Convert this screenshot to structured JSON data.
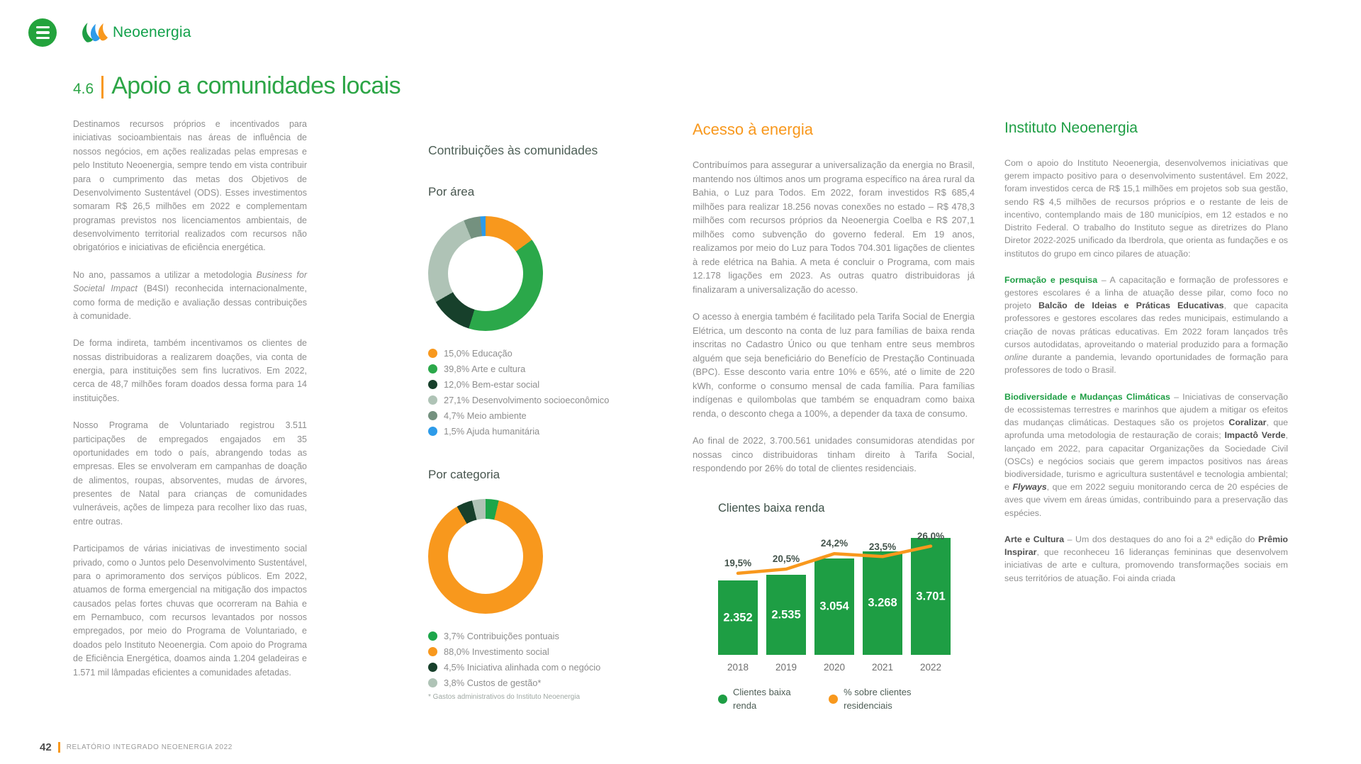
{
  "brand": {
    "name": "Neoenergia",
    "green": "#1E9E44",
    "orange": "#F8981D"
  },
  "page": {
    "section_number": "4.6",
    "title": "Apoio a comunidades locais",
    "footer": {
      "page_number": "42",
      "report_title": "RELATÓRIO INTEGRADO NEOENERGIA 2022"
    }
  },
  "col1": {
    "paragraphs": [
      "Destinamos recursos próprios e incentivados para iniciativas socioambientais nas áreas de influência de nossos negócios, em ações realizadas pelas empresas e pelo Instituto Neoenergia, sempre tendo em vista contribuir para o cumprimento das metas dos Objetivos de Desenvolvimento Sustentável (ODS). Esses investimentos somaram R$ 26,5 milhões em 2022 e complementam programas previstos nos licenciamentos ambientais, de desenvolvimento territorial realizados com recursos não obrigatórios e iniciativas de eficiência energética.",
      [
        {
          "t": "No ano, passamos a utilizar a metodologia "
        },
        {
          "t": "Business for Societal Impact",
          "i": true
        },
        {
          "t": " (B4SI) reconhecida internacionalmente, como forma de medição e avaliação dessas contribuições à comunidade."
        }
      ],
      "De forma indireta, também incentivamos os clientes de nossas distribuidoras a realizarem doações, via conta de energia, para instituições sem fins lucrativos. Em 2022, cerca de 48,7 milhões foram doados dessa forma para 14 instituições.",
      "Nosso Programa de Voluntariado registrou 3.511 participações de empregados engajados em 35 oportunidades em todo o país, abrangendo todas as empresas. Eles se envolveram em campanhas de doação de alimentos, roupas, absorventes, mudas de árvores, presentes de Natal para crianças de comunidades vulneráveis, ações de limpeza para recolher lixo das ruas, entre outras.",
      "Participamos de várias iniciativas de investimento social privado, como o Juntos pelo Desenvolvimento Sustentável, para o aprimoramento dos serviços públicos. Em 2022, atuamos de forma emergencial na mitigação dos impactos causados pelas fortes chuvas que ocorreram na Bahia e em Pernambuco, com recursos levantados por nossos empregados, por meio do Programa de Voluntariado, e doados pelo Instituto Neoenergia. Com apoio do Programa de Eficiência Energética, doamos ainda 1.204 geladeiras e 1.571 mil lâmpadas eficientes a comunidades afetadas."
    ]
  },
  "col2": {
    "heading": "Contribuições às comunidades"
  },
  "col3": {
    "heading": "Acesso à energia",
    "paragraphs": [
      "Contribuímos para assegurar a universalização da energia no Brasil, mantendo nos últimos anos um programa específico na área rural da Bahia, o Luz para Todos. Em 2022, foram investidos R$ 685,4 milhões para realizar 18.256 novas conexões no estado – R$ 478,3 milhões com recursos próprios da Neoenergia Coelba e R$ 207,1 milhões como subvenção do governo federal. Em 19 anos, realizamos por meio do Luz para Todos 704.301 ligações de clientes à rede elétrica na Bahia. A meta é concluir o Programa, com mais 12.178 ligações em 2023. As outras quatro distribuidoras já finalizaram a universalização do acesso.",
      "O acesso à energia também é facilitado pela Tarifa Social de Energia Elétrica, um desconto na conta de luz para famílias de baixa renda inscritas no Cadastro Único ou que tenham entre seus membros alguém que seja beneficiário do Benefício de Prestação Continuada (BPC). Esse desconto varia entre 10% e 65%, até o limite de 220 kWh, conforme o consumo mensal de cada família. Para famílias indígenas e quilombolas que também se enquadram como baixa renda, o desconto chega a 100%, a depender da taxa de consumo.",
      "Ao final de 2022, 3.700.561 unidades consumidoras atendidas por nossas cinco distribuidoras tinham direito à Tarifa Social, respondendo por 26% do total de clientes residenciais."
    ]
  },
  "col4": {
    "heading": "Instituto Neoenergia",
    "paragraphs": [
      "Com o apoio do Instituto Neoenergia, desenvolvemos iniciativas que gerem impacto positivo para o desenvolvimento sustentável. Em 2022, foram investidos cerca de R$ 15,1 milhões em projetos sob sua gestão, sendo R$ 4,5 milhões de recursos próprios e o restante de leis de incentivo, contemplando mais de 180 municípios, em 12 estados e no Distrito Federal. O trabalho do Instituto segue as diretrizes do Plano Diretor 2022-2025 unificado da Iberdrola, que orienta as fundações e os institutos do grupo em cinco pilares de atuação:",
      [
        {
          "t": "Formação e pesquisa",
          "b": true,
          "c": "green"
        },
        {
          "t": " – A capacitação e formação de professores e gestores escolares é a linha de atuação desse pilar, como foco no projeto "
        },
        {
          "t": "Balcão de Ideias e Práticas Educativas",
          "b": true,
          "c": "dark"
        },
        {
          "t": ", que capacita professores e gestores escolares das redes municipais, estimulando a criação de novas práticas educativas. Em 2022 foram lançados três cursos autodidatas, aproveitando o material produzido para a formação "
        },
        {
          "t": "online",
          "i": true
        },
        {
          "t": " durante a pandemia, levando oportunidades de formação para professores de todo o Brasil."
        }
      ],
      [
        {
          "t": "Biodiversidade e Mudanças Climáticas",
          "b": true,
          "c": "green"
        },
        {
          "t": " – Iniciativas de conservação de ecossistemas terrestres e marinhos que ajudem a mitigar os efeitos das mudanças climáticas. Destaques são os projetos "
        },
        {
          "t": "Coralizar",
          "b": true,
          "c": "dark"
        },
        {
          "t": ", que aprofunda uma metodologia de restauração de corais; "
        },
        {
          "t": "Impactô Verde",
          "b": true,
          "c": "dark"
        },
        {
          "t": ", lançado em 2022, para capacitar Organizações da Sociedade Civil (OSCs) e negócios sociais que gerem impactos positivos nas áreas biodiversidade, turismo e agricultura sustentável e tecnologia ambiental; e "
        },
        {
          "t": "Flyways",
          "b": true,
          "i": true,
          "c": "dark"
        },
        {
          "t": ", que em 2022 seguiu monitorando cerca de 20 espécies de aves que vivem em áreas úmidas, contribuindo para a preservação das espécies."
        }
      ],
      [
        {
          "t": "Arte e Cultura",
          "b": true,
          "c": "dark"
        },
        {
          "t": " – Um dos destaques do ano foi a 2ª edição do "
        },
        {
          "t": "Prêmio Inspirar",
          "b": true,
          "c": "dark"
        },
        {
          "t": ", que reconheceu 16 lideranças femininas que desenvolvem iniciativas de arte e cultura, promovendo transformações sociais em seus territórios de atuação. Foi ainda criada"
        }
      ]
    ]
  },
  "chart_data": [
    {
      "type": "pie",
      "subtype": "donut",
      "title": "Por área",
      "segments": [
        {
          "value": 15.0,
          "pct_label": "15,0%",
          "label": "Educação",
          "color": "#F8981D"
        },
        {
          "value": 39.8,
          "pct_label": "39,8%",
          "label": "Arte e cultura",
          "color": "#2BA84A"
        },
        {
          "value": 12.0,
          "pct_label": "12,0%",
          "label": "Bem-estar social",
          "color": "#17402B"
        },
        {
          "value": 27.1,
          "pct_label": "27,1%",
          "label": "Desenvolvimento socioeconômico",
          "color": "#AFC3B6"
        },
        {
          "value": 4.7,
          "pct_label": "4,7%",
          "label": "Meio ambiente",
          "color": "#74917F"
        },
        {
          "value": 1.5,
          "pct_label": "1,5%",
          "label": "Ajuda humanitária",
          "color": "#2D9BE9"
        }
      ]
    },
    {
      "type": "pie",
      "subtype": "donut",
      "title": "Por categoria",
      "segments": [
        {
          "value": 3.7,
          "pct_label": "3,7%",
          "label": "Contribuições pontuais",
          "color": "#1CA64A"
        },
        {
          "value": 88.0,
          "pct_label": "88,0%",
          "label": "Investimento social",
          "color": "#F8981D"
        },
        {
          "value": 4.5,
          "pct_label": "4,5%",
          "label": "Iniciativa alinhada com o negócio",
          "color": "#17402B"
        },
        {
          "value": 3.8,
          "pct_label": "3,8%",
          "label": "Custos de gestão*",
          "color": "#AFC3B6"
        }
      ],
      "footnote": "* Gastos administrativos do Instituto Neoenergia"
    },
    {
      "type": "bar",
      "subtype": "bar-with-line",
      "title": "Clientes baixa renda",
      "categories": [
        "2018",
        "2019",
        "2020",
        "2021",
        "2022"
      ],
      "bar_series": {
        "name": "Clientes baixa renda",
        "color": "#1E9E44",
        "values": [
          2352,
          2535,
          3054,
          3268,
          3701
        ],
        "labels": [
          "2.352",
          "2.535",
          "3.054",
          "3.268",
          "3.701"
        ]
      },
      "line_series": {
        "name": "% sobre clientes residenciais",
        "color": "#F8981D",
        "values": [
          19.5,
          20.5,
          24.2,
          23.5,
          26.0
        ],
        "labels": [
          "19,5%",
          "20,5%",
          "24,2%",
          "23,5%",
          "26,0%"
        ]
      }
    }
  ]
}
